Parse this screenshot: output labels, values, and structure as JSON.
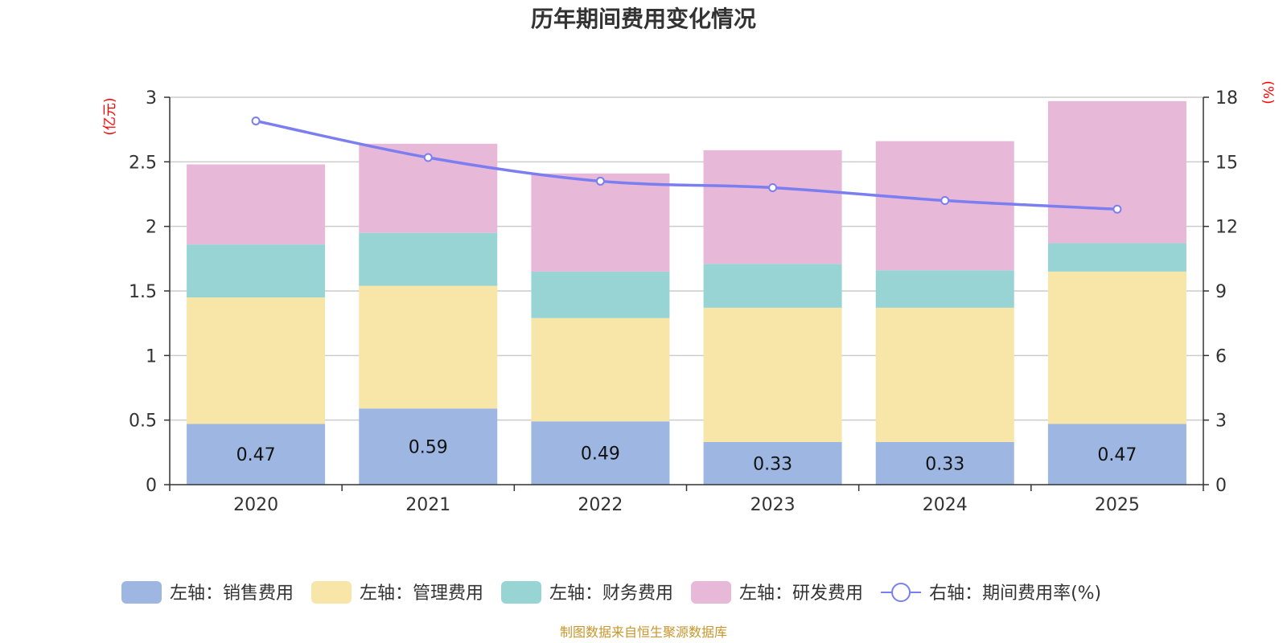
{
  "chart_data": {
    "type": "bar",
    "stacked": true,
    "title": "历年期间费用变化情况",
    "categories": [
      "2020",
      "2021",
      "2022",
      "2023",
      "2024",
      "2025"
    ],
    "y_left": {
      "unit_label": "(亿元)",
      "range": [
        0,
        3
      ],
      "ticks": [
        "0",
        "0.5",
        "1",
        "1.5",
        "2",
        "2.5",
        "3"
      ]
    },
    "y_right": {
      "unit_label": "(%)",
      "range": [
        0,
        18
      ],
      "ticks": [
        "0",
        "3",
        "6",
        "9",
        "12",
        "15",
        "18"
      ]
    },
    "series": [
      {
        "name": "左轴：销售费用",
        "axis": "left",
        "kind": "bar",
        "color": "#9db7e2",
        "values": [
          0.47,
          0.59,
          0.49,
          0.33,
          0.33,
          0.47
        ],
        "labels": [
          "0.47",
          "0.59",
          "0.49",
          "0.33",
          "0.33",
          "0.47"
        ]
      },
      {
        "name": "左轴：管理费用",
        "axis": "left",
        "kind": "bar",
        "color": "#f8e6a8",
        "values": [
          0.98,
          0.95,
          0.8,
          1.04,
          1.04,
          1.18
        ]
      },
      {
        "name": "左轴：财务费用",
        "axis": "left",
        "kind": "bar",
        "color": "#98d4d4",
        "values": [
          0.41,
          0.41,
          0.36,
          0.34,
          0.29,
          0.22
        ]
      },
      {
        "name": "左轴：研发费用",
        "axis": "left",
        "kind": "bar",
        "color": "#e8b8d8",
        "values": [
          0.62,
          0.69,
          0.76,
          0.88,
          1.0,
          1.1
        ]
      },
      {
        "name": "右轴：期间费用率(%)",
        "axis": "right",
        "kind": "line",
        "color": "#7b7ef0",
        "values": [
          16.9,
          15.2,
          14.1,
          13.8,
          13.2,
          12.8
        ]
      }
    ],
    "grid": true,
    "legend_position": "bottom",
    "source": "制图数据来自恒生聚源数据库"
  }
}
